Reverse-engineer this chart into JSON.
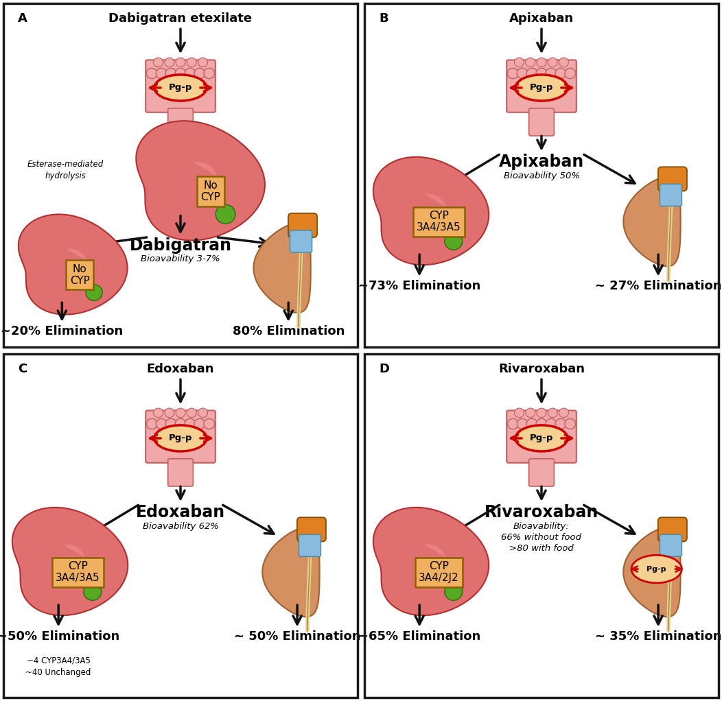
{
  "panels": [
    {
      "label": "A",
      "title": "Dabigatran etexilate",
      "drug_name": "Dabigatran",
      "bioavailability": "Bioavability 3-7%",
      "left_enzyme": "No\nCYP",
      "top_enzyme": "No\nCYP",
      "has_middle_liver": true,
      "right_has_pgp": false,
      "left_elim": "~20% Elimination",
      "right_elim": "80% Elimination",
      "esterase_text": "Esterase-mediated\nhydrolysis",
      "extra_text_bottom_left": "",
      "drug_font_size": 17
    },
    {
      "label": "B",
      "title": "Apixaban",
      "drug_name": "Apixaban",
      "bioavailability": "Bioavability 50%",
      "left_enzyme": "CYP\n3A4/3A5",
      "top_enzyme": "",
      "has_middle_liver": false,
      "right_has_pgp": false,
      "left_elim": "~73% Elimination",
      "right_elim": "~ 27% Elimination",
      "esterase_text": "",
      "extra_text_bottom_left": "",
      "drug_font_size": 17
    },
    {
      "label": "C",
      "title": "Edoxaban",
      "drug_name": "Edoxaban",
      "bioavailability": "Bioavability 62%",
      "left_enzyme": "CYP\n3A4/3A5",
      "top_enzyme": "",
      "has_middle_liver": false,
      "right_has_pgp": false,
      "left_elim": "~50% Elimination",
      "right_elim": "~ 50% Elimination",
      "esterase_text": "",
      "extra_text_bottom_left": "~4 CYP3A4/3A5\n~40 Unchanged",
      "drug_font_size": 17
    },
    {
      "label": "D",
      "title": "Rivaroxaban",
      "drug_name": "Rivaroxaban",
      "bioavailability": "Bioavability:\n66% without food\n>80 with food",
      "left_enzyme": "CYP\n3A4/2J2",
      "top_enzyme": "",
      "has_middle_liver": false,
      "right_has_pgp": true,
      "left_elim": "~65% Elimination",
      "right_elim": "~ 35% Elimination",
      "esterase_text": "",
      "extra_text_bottom_left": "",
      "drug_font_size": 17
    }
  ],
  "bg_color": "#ffffff",
  "border_color": "#1a1a1a",
  "arrow_color": "#111111",
  "box_facecolor": "#f0b060",
  "box_edgecolor": "#8B6000",
  "intestine_main_color": "#f0a8a8",
  "intestine_bump_color": "#f0a8a8",
  "intestine_edge_color": "#c06060",
  "pgp_fill": "#f5d090",
  "pgp_edge": "#cc0000",
  "liver_color": "#e07070",
  "liver_light_color": "#f09090",
  "liver_edge_color": "#b03030",
  "gallbladder_color": "#55aa22",
  "kidney_color": "#d49060",
  "kidney_edge_color": "#a06030",
  "adrenal_color": "#e08020",
  "ureter_color": "#e8d090",
  "tube_color": "#88bbdd",
  "panel_label_fontsize": 13,
  "title_fontsize": 13,
  "elim_fontsize": 13,
  "bio_fontsize": 9.5,
  "enzyme_fontsize": 11
}
